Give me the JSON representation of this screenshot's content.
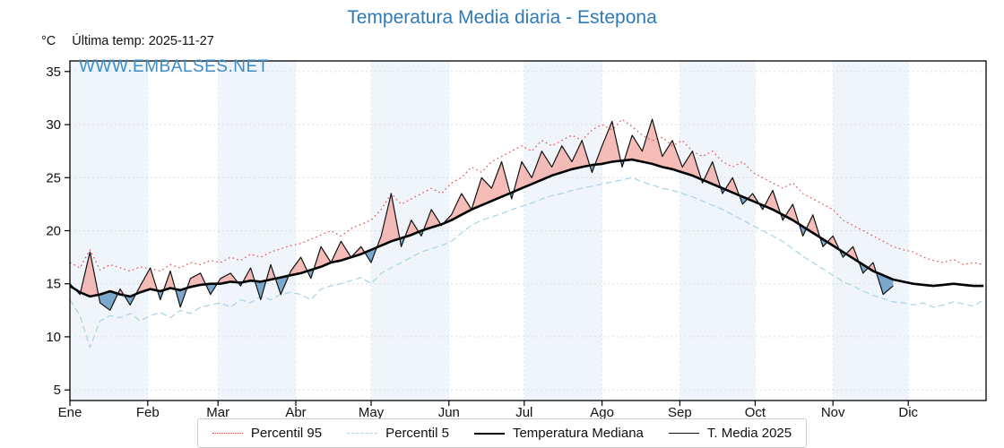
{
  "title": "Temperatura Media diaria - Estepona",
  "watermark": "WWW.EMBALSES.NET",
  "unit": "°C",
  "last_temp_label": "Última temp: 2025-11-27",
  "chart_data": {
    "type": "line",
    "title": "Temperatura Media diaria - Estepona",
    "xlabel": "",
    "ylabel": "°C",
    "ylim": [
      4,
      36
    ],
    "yticks": [
      5,
      10,
      15,
      20,
      25,
      30,
      35
    ],
    "x_months": [
      "Ene",
      "Feb",
      "Mar",
      "Abr",
      "May",
      "Jun",
      "Jul",
      "Ago",
      "Sep",
      "Oct",
      "Nov",
      "Dic"
    ],
    "month_start_days": [
      1,
      32,
      60,
      91,
      121,
      152,
      182,
      213,
      244,
      274,
      305,
      335
    ],
    "day_start": 1,
    "day_step": 4,
    "band_color": "#f0f5fb",
    "grid": true,
    "legend_position": "bottom",
    "fills": {
      "compare_to": "Temperatura Mediana",
      "above_color": "#f3b0ab",
      "below_color": "#6d9ec7"
    },
    "series": [
      {
        "name": "Percentil 95",
        "color": "#e24a4a",
        "style": "dotted",
        "width": 1.2,
        "values": [
          17.0,
          16.5,
          18.2,
          16.3,
          16.8,
          16.5,
          16.2,
          16.6,
          16.4,
          16.2,
          16.8,
          16.5,
          17.0,
          16.8,
          17.2,
          17.0,
          17.5,
          17.2,
          17.8,
          17.5,
          18.0,
          18.3,
          18.6,
          18.8,
          19.2,
          19.6,
          20.0,
          19.5,
          20.2,
          20.6,
          21.0,
          22.0,
          23.5,
          22.5,
          23.0,
          23.5,
          24.0,
          23.5,
          24.5,
          25.0,
          26.0,
          25.5,
          26.5,
          27.0,
          27.5,
          28.0,
          27.5,
          28.5,
          28.0,
          28.5,
          29.0,
          28.5,
          29.5,
          30.0,
          29.5,
          30.5,
          29.8,
          29.0,
          28.5,
          28.8,
          28.0,
          28.5,
          27.5,
          27.0,
          27.5,
          26.5,
          26.0,
          26.5,
          25.5,
          25.0,
          24.5,
          24.0,
          24.5,
          23.5,
          23.0,
          22.5,
          22.0,
          21.0,
          20.5,
          20.0,
          19.5,
          19.0,
          18.5,
          18.2,
          18.0,
          17.5,
          17.2,
          17.0,
          17.3,
          16.8,
          17.0,
          16.8
        ]
      },
      {
        "name": "Percentil 5",
        "color": "#a6d3e8",
        "style": "dashed",
        "width": 1.2,
        "values": [
          13.5,
          12.0,
          9.0,
          11.5,
          12.0,
          11.8,
          12.2,
          11.5,
          12.0,
          12.3,
          11.8,
          12.5,
          12.2,
          12.8,
          13.0,
          13.2,
          12.8,
          13.5,
          13.2,
          13.8,
          13.5,
          14.0,
          14.2,
          14.0,
          13.5,
          14.5,
          14.8,
          15.0,
          15.3,
          15.6,
          15.0,
          16.0,
          16.5,
          17.0,
          17.5,
          18.0,
          18.3,
          18.6,
          19.0,
          19.8,
          20.5,
          21.0,
          21.3,
          21.6,
          22.0,
          22.3,
          22.6,
          23.0,
          23.3,
          23.5,
          23.8,
          24.0,
          24.2,
          24.4,
          24.6,
          24.8,
          25.0,
          24.6,
          24.3,
          24.0,
          23.8,
          23.5,
          23.2,
          22.8,
          22.4,
          22.0,
          21.5,
          21.0,
          20.5,
          20.0,
          19.5,
          19.0,
          18.3,
          17.6,
          17.0,
          16.4,
          15.8,
          15.2,
          14.8,
          14.3,
          13.9,
          13.6,
          13.3,
          13.2,
          13.0,
          13.2,
          12.8,
          13.0,
          13.3,
          13.1,
          12.9,
          13.5
        ]
      },
      {
        "name": "Temperatura Mediana",
        "color": "#000000",
        "style": "solid",
        "width": 2.6,
        "values": [
          14.8,
          14.2,
          13.8,
          14.0,
          14.3,
          14.0,
          13.8,
          14.2,
          14.5,
          14.3,
          14.6,
          14.4,
          14.7,
          14.9,
          15.0,
          15.0,
          15.2,
          15.1,
          15.3,
          15.2,
          15.4,
          15.6,
          15.8,
          16.0,
          16.3,
          16.6,
          17.0,
          17.2,
          17.5,
          17.8,
          18.2,
          18.6,
          19.0,
          19.3,
          19.6,
          20.0,
          20.3,
          20.6,
          21.0,
          21.5,
          22.0,
          22.4,
          22.8,
          23.2,
          23.6,
          24.0,
          24.4,
          24.8,
          25.2,
          25.5,
          25.8,
          26.0,
          26.2,
          26.3,
          26.5,
          26.6,
          26.7,
          26.5,
          26.3,
          26.0,
          25.8,
          25.5,
          25.2,
          24.8,
          24.4,
          24.0,
          23.6,
          23.2,
          22.8,
          22.4,
          22.0,
          21.5,
          21.0,
          20.4,
          19.8,
          19.2,
          18.6,
          18.0,
          17.4,
          16.8,
          16.2,
          15.8,
          15.4,
          15.2,
          15.0,
          14.9,
          14.8,
          14.9,
          15.0,
          14.9,
          14.8,
          14.8
        ]
      },
      {
        "name": "T. Media 2025",
        "color": "#111111",
        "style": "solid",
        "width": 1.2,
        "values": [
          15.0,
          14.0,
          18.0,
          13.2,
          12.5,
          14.5,
          13.0,
          14.8,
          16.5,
          13.5,
          16.2,
          12.8,
          15.5,
          16.0,
          14.0,
          15.5,
          16.0,
          14.8,
          16.5,
          13.5,
          16.8,
          14.0,
          16.2,
          17.5,
          15.5,
          18.5,
          17.0,
          19.0,
          17.5,
          18.5,
          17.0,
          19.5,
          23.5,
          18.5,
          21.0,
          19.5,
          22.0,
          20.5,
          21.5,
          23.5,
          22.0,
          25.0,
          24.0,
          26.5,
          23.0,
          26.5,
          25.0,
          27.5,
          26.0,
          28.0,
          26.5,
          28.5,
          25.5,
          28.0,
          30.3,
          26.0,
          29.0,
          27.5,
          30.5,
          27.0,
          28.5,
          26.0,
          27.5,
          24.5,
          26.5,
          23.5,
          25.0,
          22.5,
          23.5,
          22.0,
          23.8,
          21.0,
          22.5,
          19.5,
          21.5,
          18.5,
          19.5,
          17.5,
          18.5,
          16.0,
          17.0,
          14.0,
          14.8
        ]
      }
    ]
  }
}
